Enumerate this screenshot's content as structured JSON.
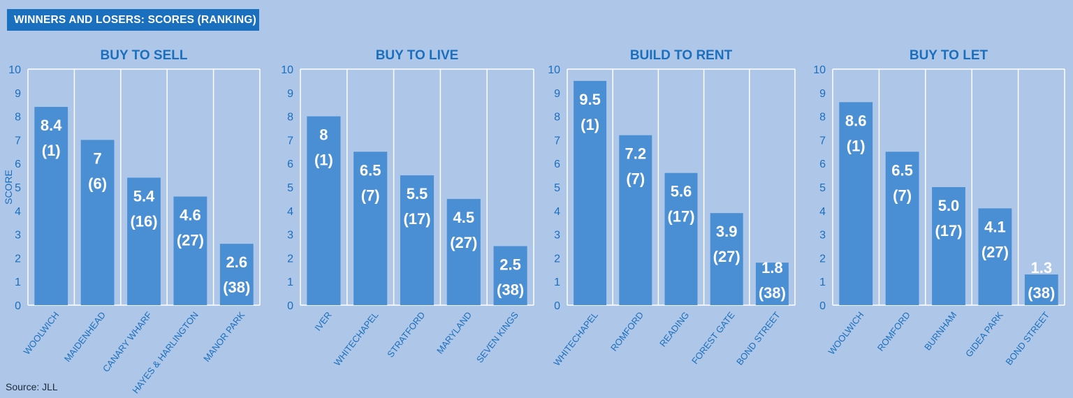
{
  "banner": {
    "title": "WINNERS AND LOSERS: SCORES (RANKING)"
  },
  "source": "Source: JLL",
  "colors": {
    "bar": "#4a8fd4",
    "bar_label": "#ffffff",
    "text": "#1a6fbe",
    "grid": "#ffffff",
    "background": "#aec6e7"
  },
  "chart_data": [
    {
      "type": "bar",
      "title": "BUY TO SELL",
      "ylabel": "SCORE",
      "ylim": [
        0,
        10
      ],
      "yticks": [
        0,
        1,
        2,
        3,
        4,
        5,
        6,
        7,
        8,
        9,
        10
      ],
      "categories": [
        "WOOLWICH",
        "MAIDENHEAD",
        "CANARY  WHARF",
        "HAYES & HARLINGTON",
        "MANOR PARK"
      ],
      "values": [
        8.4,
        7,
        5.4,
        4.6,
        2.6
      ],
      "value_labels": [
        "8.4",
        "7",
        "5.4",
        "4.6",
        "2.6"
      ],
      "rank_labels": [
        "(1)",
        "(6)",
        "(16)",
        "(27)",
        "(38)"
      ]
    },
    {
      "type": "bar",
      "title": "BUY TO LIVE",
      "ylabel": "",
      "ylim": [
        0,
        10
      ],
      "yticks": [
        0,
        1,
        2,
        3,
        4,
        5,
        6,
        7,
        8,
        9,
        10
      ],
      "categories": [
        "IVER",
        "WHITECHAPEL",
        "STRATFORD",
        "MARYLAND",
        "SEVEN KINGS"
      ],
      "values": [
        8,
        6.5,
        5.5,
        4.5,
        2.5
      ],
      "value_labels": [
        "8",
        "6.5",
        "5.5",
        "4.5",
        "2.5"
      ],
      "rank_labels": [
        "(1)",
        "(7)",
        "(17)",
        "(27)",
        "(38)"
      ]
    },
    {
      "type": "bar",
      "title": "BUILD TO RENT",
      "ylabel": "",
      "ylim": [
        0,
        10
      ],
      "yticks": [
        0,
        1,
        2,
        3,
        4,
        5,
        6,
        7,
        8,
        9,
        10
      ],
      "categories": [
        "WHITECHAPEL",
        "ROMFORD",
        "READING",
        "FOREST GATE",
        "BOND STREET"
      ],
      "values": [
        9.5,
        7.2,
        5.6,
        3.9,
        1.8
      ],
      "value_labels": [
        "9.5",
        "7.2",
        "5.6",
        "3.9",
        "1.8"
      ],
      "rank_labels": [
        "(1)",
        "(7)",
        "(17)",
        "(27)",
        "(38)"
      ]
    },
    {
      "type": "bar",
      "title": "BUY TO LET",
      "ylabel": "",
      "ylim": [
        0,
        10
      ],
      "yticks": [
        0,
        1,
        2,
        3,
        4,
        5,
        6,
        7,
        8,
        9,
        10
      ],
      "categories": [
        "WOOLWICH",
        "ROMFORD",
        "BURNHAM",
        "GIDEA PARK",
        "BOND STREET"
      ],
      "values": [
        8.6,
        6.5,
        5.0,
        4.1,
        1.3
      ],
      "value_labels": [
        "8.6",
        "6.5",
        "5.0",
        "4.1",
        "1.3"
      ],
      "rank_labels": [
        "(1)",
        "(7)",
        "(17)",
        "(27)",
        "(38)"
      ]
    }
  ]
}
